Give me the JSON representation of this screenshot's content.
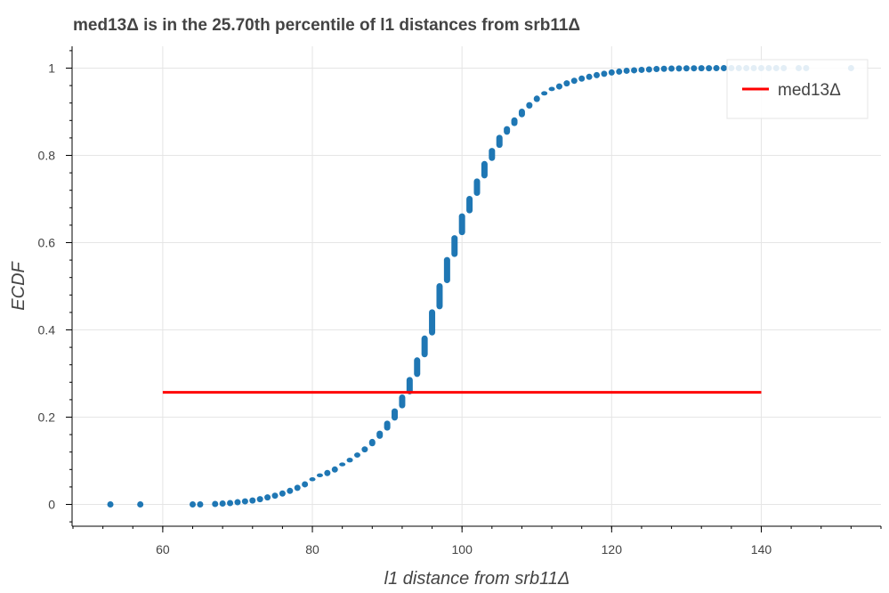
{
  "chart_data": {
    "type": "scatter",
    "title": "med13Δ is in the 25.70th percentile of l1 distances from srb11Δ",
    "xlabel": "l1 distance from srb11Δ",
    "ylabel": "ECDF",
    "xlim": [
      48,
      156
    ],
    "ylim": [
      -0.05,
      1.05
    ],
    "x_ticks": [
      60,
      80,
      100,
      120,
      140
    ],
    "x_minor_step": 4,
    "y_ticks": [
      0,
      0.2,
      0.4,
      0.6,
      0.8,
      1
    ],
    "y_tick_labels": [
      "0",
      "0.2",
      "0.4",
      "0.6",
      "0.8",
      "1"
    ],
    "y_minor_step": 0.04,
    "grid": true,
    "legend": "top-right",
    "series": [
      {
        "name": "",
        "kind": "points",
        "color": "#1f77b4",
        "x": [
          53,
          57,
          64,
          65,
          67,
          68,
          69,
          70,
          71,
          72,
          73,
          74,
          75,
          76,
          77,
          78,
          79,
          80,
          81,
          82,
          83,
          84,
          85,
          86,
          87,
          88,
          89,
          90,
          91,
          92,
          93,
          94,
          95,
          96,
          97,
          98,
          99,
          100,
          101,
          102,
          103,
          104,
          105,
          106,
          107,
          108,
          109,
          110,
          111,
          112,
          113,
          114,
          115,
          116,
          117,
          118,
          119,
          120,
          121,
          122,
          123,
          124,
          125,
          126,
          127,
          128,
          129,
          130,
          131,
          132,
          133,
          134,
          135,
          136,
          137,
          138,
          139,
          140,
          141,
          142,
          143,
          145,
          146,
          152
        ],
        "y": [
          0.0,
          0.0,
          0.0,
          0.0,
          0.001,
          0.002,
          0.003,
          0.005,
          0.007,
          0.009,
          0.012,
          0.016,
          0.02,
          0.025,
          0.031,
          0.038,
          0.046,
          0.055,
          0.064,
          0.072,
          0.08,
          0.089,
          0.1,
          0.112,
          0.126,
          0.143,
          0.162,
          0.185,
          0.213,
          0.245,
          0.285,
          0.33,
          0.38,
          0.44,
          0.5,
          0.56,
          0.61,
          0.66,
          0.7,
          0.74,
          0.78,
          0.81,
          0.84,
          0.86,
          0.88,
          0.9,
          0.915,
          0.93,
          0.94,
          0.95,
          0.958,
          0.965,
          0.971,
          0.976,
          0.98,
          0.984,
          0.987,
          0.99,
          0.992,
          0.994,
          0.995,
          0.996,
          0.997,
          0.998,
          0.9985,
          0.999,
          0.9993,
          0.9995,
          0.9996,
          0.9997,
          0.9998,
          0.9999,
          1.0,
          1.0,
          1.0,
          1.0,
          1.0,
          1.0,
          1.0,
          1.0,
          1.0,
          1.0,
          1.0,
          1.0
        ]
      },
      {
        "name": "med13Δ",
        "kind": "line",
        "color": "#ff0000",
        "x": [
          60,
          140
        ],
        "y": [
          0.257,
          0.257
        ]
      }
    ]
  }
}
